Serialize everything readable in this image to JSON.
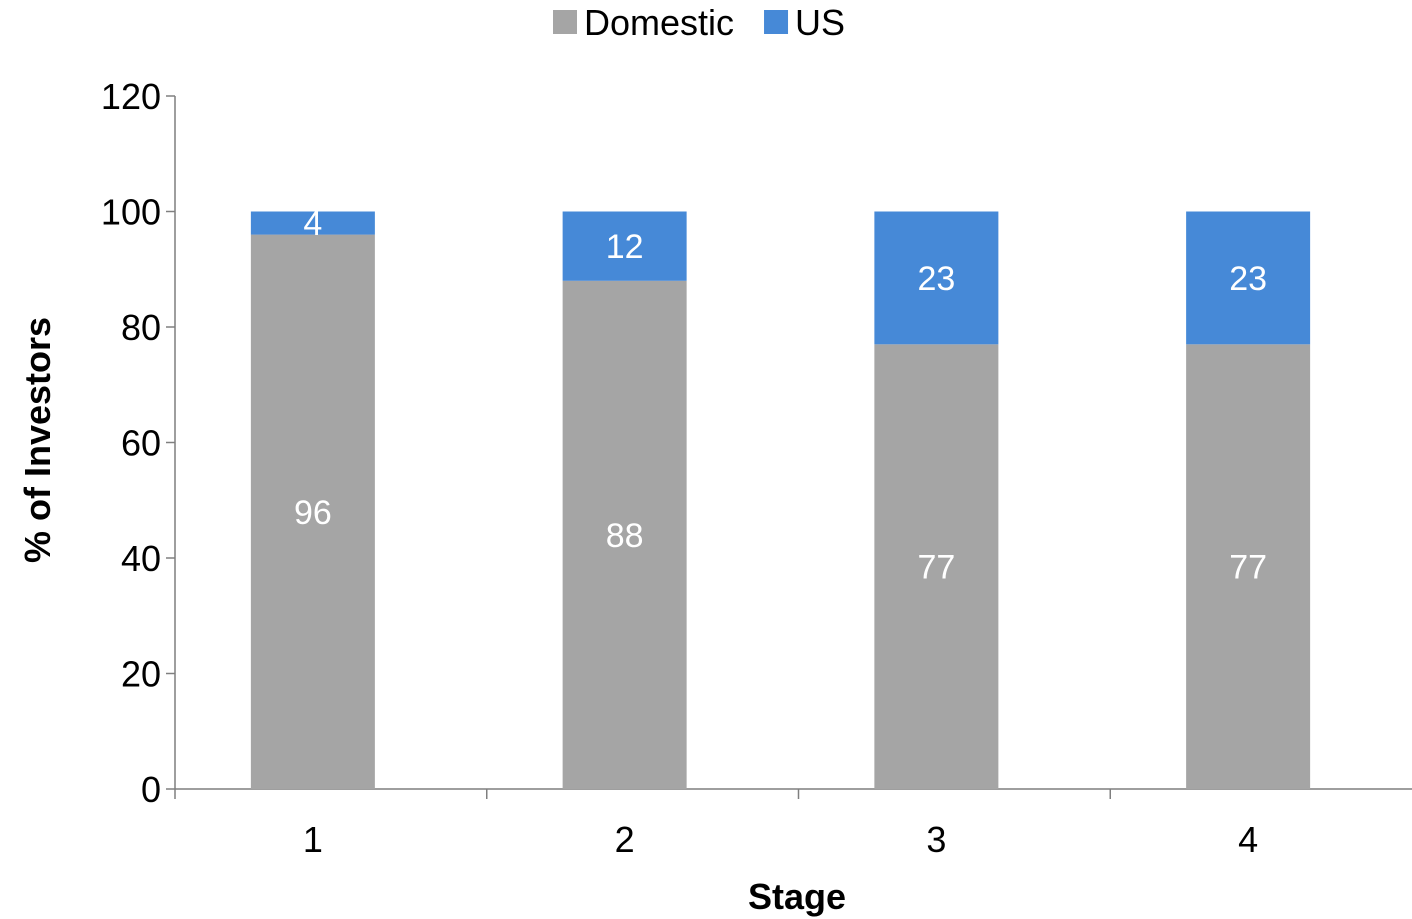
{
  "chart_data": {
    "type": "bar",
    "stacked": true,
    "categories": [
      "1",
      "2",
      "3",
      "4"
    ],
    "series": [
      {
        "name": "Domestic",
        "values": [
          96,
          88,
          77,
          77
        ],
        "color": "#a5a5a5"
      },
      {
        "name": "US",
        "values": [
          4,
          12,
          23,
          23
        ],
        "color": "#4689d7"
      }
    ],
    "title": "",
    "xlabel": "Stage",
    "ylabel": "% of Investors",
    "ylim": [
      0,
      120
    ],
    "yticks": [
      0,
      20,
      40,
      60,
      80,
      100,
      120
    ],
    "grid": false,
    "legend_position": "top-center"
  }
}
